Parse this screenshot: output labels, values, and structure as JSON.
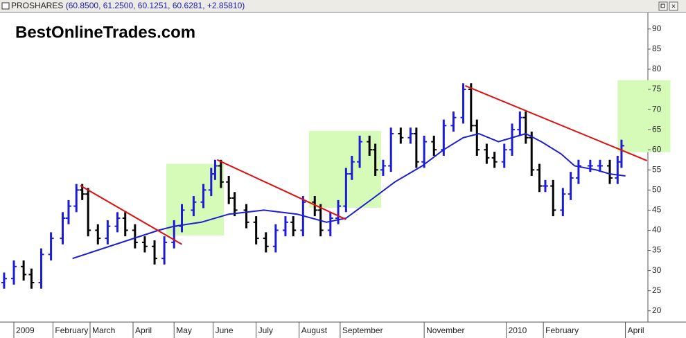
{
  "window": {
    "symbol": "PROSHARES",
    "quote": "(60.8500, 61.2500, 60.1251, 60.6281, +2.85810)"
  },
  "chart_data": {
    "type": "ohlc",
    "title": "BestOnlineTrades.com",
    "up_color": "#1c1cd4",
    "down_color": "#000000",
    "x": [
      -5,
      0,
      5,
      9,
      14,
      19,
      25,
      28,
      32,
      35,
      38,
      43,
      48,
      53,
      57,
      62,
      67,
      72,
      77,
      82,
      86,
      92,
      97,
      101,
      103,
      106,
      110,
      113,
      119,
      124,
      129,
      134,
      139,
      143,
      148,
      154,
      157,
      162,
      166,
      170,
      173,
      177,
      182,
      185,
      189,
      193,
      198,
      203,
      206,
      210,
      215,
      220,
      225,
      230,
      234,
      237,
      242,
      246,
      251,
      255,
      259,
      262,
      265,
      269,
      272,
      276,
      281,
      285,
      289,
      295,
      300,
      305,
      309,
      311
    ],
    "open": [
      27,
      28,
      31,
      29,
      27,
      34,
      38,
      43,
      46,
      50,
      49,
      40,
      38,
      41,
      43,
      40,
      37,
      36,
      33,
      37,
      41,
      45,
      47,
      50,
      54,
      56,
      52,
      48,
      45,
      42,
      38,
      36,
      40,
      42,
      40,
      47,
      45,
      40,
      43,
      46,
      54,
      57,
      62,
      60,
      55,
      56,
      64,
      63,
      64,
      57,
      62,
      60,
      66,
      68,
      75,
      66,
      60,
      58,
      57,
      60,
      65,
      68,
      63,
      55,
      51,
      51,
      45,
      49,
      53,
      56,
      56,
      56,
      53,
      57
    ],
    "high": [
      29.5,
      32.5,
      32.5,
      30.5,
      35.5,
      39.5,
      44.5,
      47.5,
      51.5,
      51.5,
      50.5,
      41.5,
      42.5,
      44.5,
      44.5,
      41.5,
      38.5,
      37.5,
      38.5,
      42.5,
      46.5,
      48.5,
      51.5,
      55.5,
      57.5,
      57.5,
      53.5,
      49.5,
      46.5,
      43.5,
      39.5,
      41.5,
      43.5,
      43.5,
      48.5,
      48.5,
      46.5,
      44.5,
      47.5,
      55.5,
      58.5,
      63.5,
      63.5,
      61.5,
      57.5,
      65.5,
      65.5,
      65.5,
      65.5,
      63.5,
      63.5,
      67.5,
      69.5,
      76.5,
      76.5,
      67.5,
      61.5,
      59.5,
      61.5,
      66.5,
      69.5,
      69.5,
      64.5,
      56.5,
      52.5,
      52.5,
      50.5,
      54.5,
      57.5,
      57.5,
      57.5,
      57.5,
      58.5,
      62.5
    ],
    "low": [
      25.5,
      26.5,
      27.5,
      25.5,
      25.5,
      32.5,
      36.5,
      41.5,
      44.5,
      47.5,
      38.5,
      36.5,
      36.5,
      39.5,
      38.5,
      35.5,
      34.5,
      31.5,
      31.5,
      35.5,
      39.5,
      43.5,
      45.5,
      48.5,
      52.5,
      50.5,
      46.5,
      43.5,
      40.5,
      36.5,
      34.5,
      34.5,
      38.5,
      38.5,
      38.5,
      43.5,
      38.5,
      38.5,
      41.5,
      44.5,
      52.5,
      55.5,
      58.5,
      53.5,
      53.5,
      54.5,
      61.5,
      61.5,
      55.5,
      55.5,
      58.5,
      58.5,
      64.5,
      66.5,
      64.5,
      58.5,
      56.5,
      55.5,
      55.5,
      58.5,
      63.5,
      61.5,
      53.5,
      49.5,
      49.5,
      43.5,
      43.5,
      47.5,
      51.5,
      54.5,
      54.5,
      51.5,
      51.5,
      55.5
    ],
    "close": [
      28,
      31,
      29,
      27,
      34,
      38,
      43,
      46,
      50,
      49,
      40,
      38,
      41,
      43,
      40,
      37,
      36,
      33,
      37,
      41,
      45,
      47,
      50,
      54,
      56,
      52,
      48,
      45,
      42,
      38,
      36,
      40,
      42,
      40,
      47,
      45,
      40,
      43,
      46,
      54,
      57,
      62,
      60,
      55,
      56,
      64,
      63,
      64,
      57,
      62,
      60,
      66,
      68,
      75,
      66,
      60,
      58,
      57,
      60,
      65,
      68,
      63,
      55,
      51,
      51,
      45,
      49,
      53,
      56,
      56,
      56,
      53,
      57,
      61
    ],
    "moving_average": {
      "color": "#1c1cd4",
      "x": [
        30,
        74,
        82,
        96,
        110,
        128,
        145,
        160,
        170,
        184,
        195,
        209,
        220,
        230,
        238,
        248,
        262,
        270,
        280,
        287,
        298,
        305,
        313
      ],
      "values": [
        33,
        40,
        41,
        42,
        44,
        45,
        44,
        42,
        43,
        48,
        52,
        56,
        60,
        63,
        64,
        62,
        64,
        62,
        59,
        56,
        55,
        54,
        53.5
      ]
    },
    "trendline_color": "#e01010",
    "trendlines": [
      {
        "x": [
          34,
          86
        ],
        "values": [
          51.1,
          36.5
        ]
      },
      {
        "x": [
          104,
          170
        ],
        "values": [
          57.5,
          42.7
        ]
      },
      {
        "x": [
          231,
          324
        ],
        "values": [
          75.9,
          57.3
        ]
      }
    ],
    "zone_color": "#d6fbb8",
    "zones": [
      {
        "x": [
          78,
          107.5
        ],
        "y": [
          38.7,
          56.5
        ]
      },
      {
        "x": [
          151,
          188
        ],
        "y": [
          45.6,
          64.7
        ]
      },
      {
        "x": [
          309,
          336
        ],
        "y": [
          59.4,
          77.3
        ]
      }
    ],
    "xlim": [
      -7.1,
      324.5
    ],
    "ylim": [
      17.2,
      94.1
    ],
    "yticks": [
      20,
      25,
      30,
      35,
      40,
      45,
      50,
      55,
      60,
      65,
      70,
      75,
      80,
      85,
      90
    ],
    "xticks": [
      {
        "value": 0,
        "label": "2009"
      },
      {
        "value": 20,
        "label": "February"
      },
      {
        "value": 39,
        "label": "March"
      },
      {
        "value": 61,
        "label": "April"
      },
      {
        "value": 82,
        "label": "May"
      },
      {
        "value": 102,
        "label": "June"
      },
      {
        "value": 124,
        "label": "July"
      },
      {
        "value": 146,
        "label": "August"
      },
      {
        "value": 167,
        "label": "September"
      },
      {
        "value": 210,
        "label": "November"
      },
      {
        "value": 252,
        "label": "2010"
      },
      {
        "value": 271,
        "label": "February"
      },
      {
        "value": 313,
        "label": "April"
      }
    ]
  }
}
